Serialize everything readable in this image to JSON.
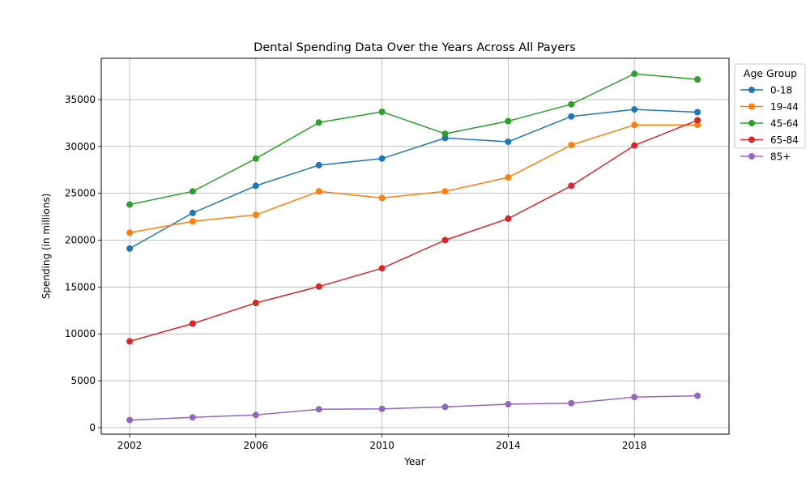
{
  "chart_data": {
    "type": "line",
    "title": "Dental Spending Data Over the Years Across All Payers",
    "xlabel": "Year",
    "ylabel": "Spending (in millions)",
    "x": [
      2002,
      2004,
      2006,
      2008,
      2010,
      2012,
      2014,
      2016,
      2018,
      2020
    ],
    "x_ticks": [
      2002,
      2006,
      2010,
      2014,
      2018
    ],
    "y_ticks": [
      0,
      5000,
      10000,
      15000,
      20000,
      25000,
      30000,
      35000
    ],
    "xlim": [
      2001.1,
      2021.0
    ],
    "ylim": [
      -700,
      39400
    ],
    "grid": true,
    "legend_title": "Age Group",
    "legend_position": "outside-right",
    "series": [
      {
        "name": "0-18",
        "color": "#1f77b4",
        "values": [
          19100,
          22900,
          25800,
          28000,
          28700,
          30900,
          30500,
          33200,
          33950,
          33650
        ]
      },
      {
        "name": "19-44",
        "color": "#ff7f0e",
        "values": [
          20800,
          22000,
          22700,
          25200,
          24500,
          25200,
          26700,
          30150,
          32300,
          32300
        ]
      },
      {
        "name": "45-64",
        "color": "#2ca02c",
        "values": [
          23800,
          25200,
          28700,
          32550,
          33700,
          31350,
          32700,
          34500,
          37750,
          37150
        ]
      },
      {
        "name": "65-84",
        "color": "#d62728",
        "values": [
          9200,
          11100,
          13300,
          15050,
          17000,
          20000,
          22300,
          25800,
          30100,
          32800
        ]
      },
      {
        "name": "85+",
        "color": "#9467bd",
        "values": [
          800,
          1100,
          1350,
          1950,
          2000,
          2200,
          2500,
          2600,
          3250,
          3400
        ]
      }
    ]
  }
}
